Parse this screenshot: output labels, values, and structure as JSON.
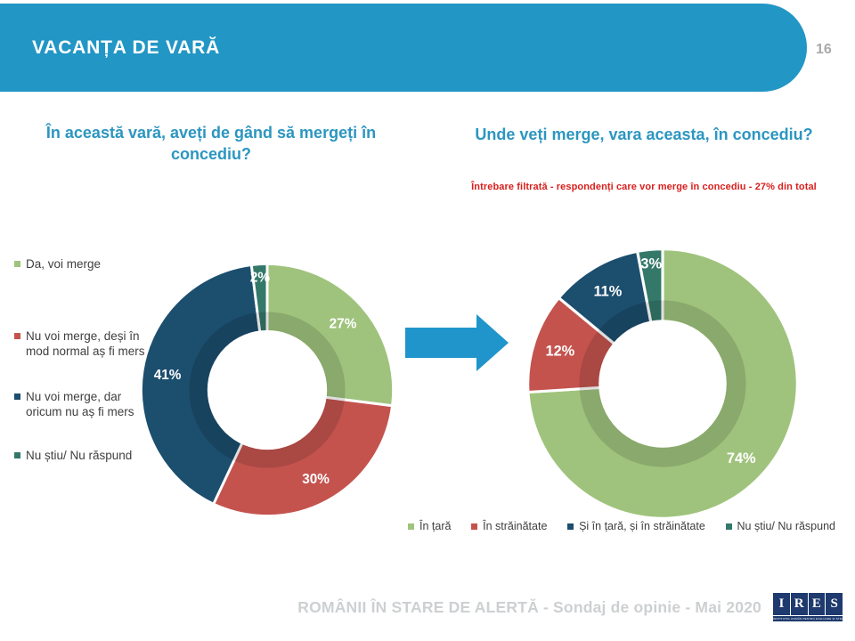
{
  "header": {
    "title": "VACANȚA DE VARĂ",
    "page_number": "16"
  },
  "colors": {
    "header_blue": "#2296C5",
    "title_blue": "#2C96C0",
    "note_red": "#D8201D",
    "series_green": "#9FC37C",
    "series_red": "#C4534E",
    "series_dark_blue": "#1C4E6E",
    "series_teal": "#34786A",
    "footer_gray": "#CDD0D2",
    "logo_navy": "#1E3A6E"
  },
  "chart_data": [
    {
      "type": "pie",
      "subtype": "donut",
      "title": "În această vară, aveți de gând să mergeți în concediu?",
      "labels": [
        "Da, voi merge",
        "Nu voi merge, deși în mod normal aș fi mers",
        "Nu voi merge, dar oricum nu aș fi mers",
        "Nu știu/ Nu răspund"
      ],
      "values": [
        27,
        30,
        41,
        2
      ],
      "value_labels": [
        "27%",
        "30%",
        "41%",
        "2%"
      ],
      "colors": [
        "#9FC37C",
        "#C4534E",
        "#1C4E6E",
        "#34786A"
      ],
      "legend_position": "left",
      "start_angle": 0,
      "direction": "clockwise"
    },
    {
      "type": "pie",
      "subtype": "donut",
      "title": "Unde veți merge, vara aceasta, în concediu?",
      "note": "Întrebare filtrată - respondenți care vor merge în concediu - 27% din total",
      "labels": [
        "În țară",
        "În străinătate",
        "Și în țară, și în străinătate",
        "Nu știu/ Nu răspund"
      ],
      "values": [
        74,
        12,
        11,
        3
      ],
      "value_labels": [
        "74%",
        "12%",
        "11%",
        "3%"
      ],
      "colors": [
        "#9FC37C",
        "#C4534E",
        "#1C4E6E",
        "#34786A"
      ],
      "legend_position": "bottom",
      "start_angle": 0,
      "direction": "clockwise"
    }
  ],
  "footer": {
    "text": "ROMÂNII ÎN STARE DE ALERTĂ - Sondaj de opinie - Mai 2020",
    "logo_letters": [
      "I",
      "R",
      "E",
      "S"
    ],
    "logo_tagline": "INSTITUTUL ROMÂN PENTRU EVALUARE ȘI STRATEGIE"
  }
}
